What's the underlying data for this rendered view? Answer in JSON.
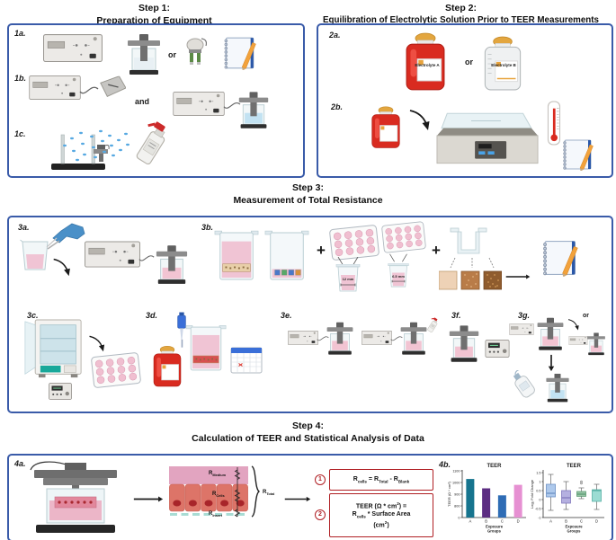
{
  "figure": {
    "panel_border_color": "#3a5ba9",
    "formula_border_color": "#b01f24"
  },
  "step1": {
    "title1": "Step 1:",
    "title2": "Preparation of Equipment",
    "label_a": "1a.",
    "label_b": "1b.",
    "label_c": "1c.",
    "or_text": "or",
    "and_text": "and"
  },
  "step2": {
    "title1": "Step 2:",
    "title2": "Equilibration of Electrolytic Solution Prior to TEER Measurements",
    "label_a": "2a.",
    "label_b": "2b.",
    "or_text": "or",
    "bottle_a_label": "Electrolyte A",
    "bottle_b_label": "Electrolyte B"
  },
  "step3": {
    "title1": "Step 3:",
    "title2": "Measurement of Total Resistance",
    "label_a": "3a.",
    "label_b": "3b.",
    "label_c": "3c.",
    "label_d": "3d.",
    "label_e": "3e.",
    "label_f": "3f.",
    "label_g": "3g.",
    "plus_text": "+",
    "or_text": "or",
    "insert_size_large": "12 mm",
    "insert_size_small": "6.5 mm"
  },
  "step4": {
    "title1": "Step 4:",
    "title2": "Calculation of TEER and Statistical Analysis of Data",
    "label_a": "4a.",
    "label_b": "4b.",
    "r_medium": [
      [
        "t",
        "R"
      ],
      [
        "s",
        "Medium"
      ]
    ],
    "r_cells": [
      [
        "t",
        "R"
      ],
      [
        "s",
        "Cells"
      ]
    ],
    "r_insert": [
      [
        "t",
        "R"
      ],
      [
        "s",
        "Insert"
      ]
    ],
    "r_total": [
      [
        "t",
        "R"
      ],
      [
        "s",
        "Total"
      ]
    ],
    "formula1_num": "1",
    "formula1": [
      [
        "t",
        "R"
      ],
      [
        "s",
        "cells"
      ],
      [
        "t",
        " = R"
      ],
      [
        "s",
        "Total"
      ],
      [
        "t",
        " - R"
      ],
      [
        "s",
        "Blank"
      ]
    ],
    "formula2_num": "2",
    "formula2": [
      [
        "t",
        "TEER (Ω * cm"
      ],
      [
        "sup",
        "2"
      ],
      [
        "t",
        ") ="
      ],
      [
        "br",
        ""
      ],
      [
        "t",
        "R"
      ],
      [
        "s",
        "cells"
      ],
      [
        "t",
        " * Surface Area"
      ],
      [
        "br",
        ""
      ],
      [
        "t",
        "(cm"
      ],
      [
        "sup",
        "2"
      ],
      [
        "t",
        ")"
      ]
    ]
  },
  "chart_data": [
    {
      "type": "bar",
      "title": "TEER",
      "categories": [
        "A",
        "B",
        "C",
        "D"
      ],
      "values": [
        1030,
        950,
        890,
        980
      ],
      "bar_colors": [
        "#16748e",
        "#5c2d82",
        "#2e6cb5",
        "#e690d2"
      ],
      "xlabel": "Exposure Groups",
      "ylabel": "TEER (Ω * cm²)",
      "ylim": [
        0,
        1150
      ],
      "yticks": [
        0,
        800,
        900,
        1000,
        1100
      ],
      "grid": false,
      "legend": "none"
    },
    {
      "type": "box",
      "title": "TEER",
      "categories": [
        "A",
        "B",
        "C",
        "D"
      ],
      "xlabel": "Exposure Groups",
      "ylabel": "Log₂ Fold Change",
      "ylim": [
        -1,
        1.6
      ],
      "yticks": [
        -1,
        -0.5,
        0,
        0.5,
        1,
        1.5
      ],
      "grid": false,
      "legend": "none",
      "series": [
        {
          "name": "A",
          "low": -0.6,
          "q1": 0.15,
          "median": 0.35,
          "q3": 0.85,
          "high": 1.4,
          "outliers": [],
          "color": "#aec9ec",
          "stroke": "#6b8fc4"
        },
        {
          "name": "B",
          "low": -0.55,
          "q1": -0.2,
          "median": 0.1,
          "q3": 0.5,
          "high": 1.0,
          "outliers": [],
          "color": "#b5b0e0",
          "stroke": "#8279bd"
        },
        {
          "name": "C",
          "low": 0.05,
          "q1": 0.18,
          "median": 0.3,
          "q3": 0.45,
          "high": 0.65,
          "outliers": [
            0.9,
            1.0
          ],
          "color": "#97c4a6",
          "stroke": "#5c9b72"
        },
        {
          "name": "D",
          "low": -0.55,
          "q1": -0.1,
          "median": 0.5,
          "q3": 0.55,
          "high": 0.85,
          "outliers": [],
          "color": "#9cdcd3",
          "stroke": "#58b1a6"
        }
      ]
    }
  ]
}
